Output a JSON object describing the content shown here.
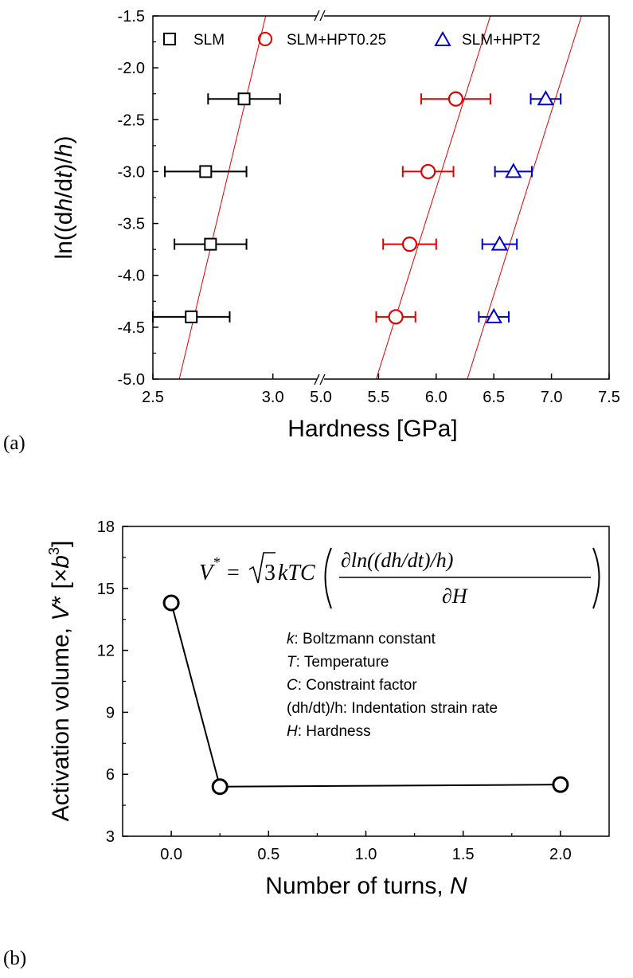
{
  "chart_data": [
    {
      "panel_label": "(a)",
      "type": "scatter",
      "xlabel": "Hardness [GPa]",
      "ylabel": "ln((dh/dt)/h)",
      "ylim": [
        -5.0,
        -1.5
      ],
      "y_ticks": [
        "-1.5",
        "-2.0",
        "-2.5",
        "-3.0",
        "-3.5",
        "-4.0",
        "-4.5",
        "-5.0"
      ],
      "x_axis_break": true,
      "x_segments": [
        {
          "range": [
            2.5,
            3.2
          ],
          "ticks": [
            "2.5",
            "3.0"
          ]
        },
        {
          "range": [
            5.0,
            7.5
          ],
          "ticks": [
            "5.0",
            "5.5",
            "6.0",
            "6.5",
            "7.0",
            "7.5"
          ]
        }
      ],
      "legend_position": "top",
      "series": [
        {
          "name": "SLM",
          "marker": "square",
          "color": "#000000",
          "x": [
            2.88,
            2.72,
            2.74,
            2.66
          ],
          "y": [
            -2.3,
            -3.0,
            -3.7,
            -4.4
          ],
          "xerr": [
            0.15,
            0.17,
            0.15,
            0.16
          ]
        },
        {
          "name": "SLM+HPT0.25",
          "marker": "circle",
          "color": "#e00000",
          "x": [
            6.17,
            5.93,
            5.77,
            5.65
          ],
          "y": [
            -2.3,
            -3.0,
            -3.7,
            -4.4
          ],
          "xerr": [
            0.3,
            0.22,
            0.23,
            0.17
          ]
        },
        {
          "name": "SLM+HPT2",
          "marker": "triangle",
          "color": "#0000cc",
          "x": [
            6.95,
            6.67,
            6.55,
            6.5
          ],
          "y": [
            -2.3,
            -3.0,
            -3.7,
            -4.4
          ],
          "xerr": [
            0.13,
            0.16,
            0.15,
            0.13
          ]
        }
      ],
      "fit_lines": [
        {
          "color": "#e00000",
          "points": [
            [
              2.61,
              -5.0
            ],
            [
              2.97,
              -1.5
            ]
          ]
        },
        {
          "color": "#e00000",
          "points": [
            [
              5.48,
              -5.0
            ],
            [
              6.47,
              -1.5
            ]
          ]
        },
        {
          "color": "#e00000",
          "points": [
            [
              6.27,
              -5.0
            ],
            [
              7.26,
              -1.5
            ]
          ]
        }
      ]
    },
    {
      "panel_label": "(b)",
      "type": "line",
      "xlabel": "Number of turns, N",
      "ylabel": "Activation volume, V* [×b³]",
      "xlim": [
        -0.25,
        2.25
      ],
      "ylim": [
        3,
        18
      ],
      "x_ticks": [
        "0.0",
        "0.5",
        "1.0",
        "1.5",
        "2.0"
      ],
      "y_ticks": [
        "3",
        "6",
        "9",
        "12",
        "15",
        "18"
      ],
      "series": [
        {
          "marker": "circle",
          "color": "#000000",
          "x": [
            0,
            0.25,
            2.0
          ],
          "y": [
            14.3,
            5.4,
            5.5
          ]
        }
      ],
      "equation": "V* = √3 kTC (∂ln((dh/dt)/h) / ∂H)",
      "annotations": [
        {
          "sym": "k",
          "text": ": Boltzmann constant"
        },
        {
          "sym": "T",
          "text": ": Temperature"
        },
        {
          "sym": "C",
          "text": ": Constraint factor"
        },
        {
          "sym": "(dh/dt)/h",
          "text": ": Indentation strain rate"
        },
        {
          "sym": "H",
          "text": ": Hardness"
        }
      ]
    }
  ]
}
